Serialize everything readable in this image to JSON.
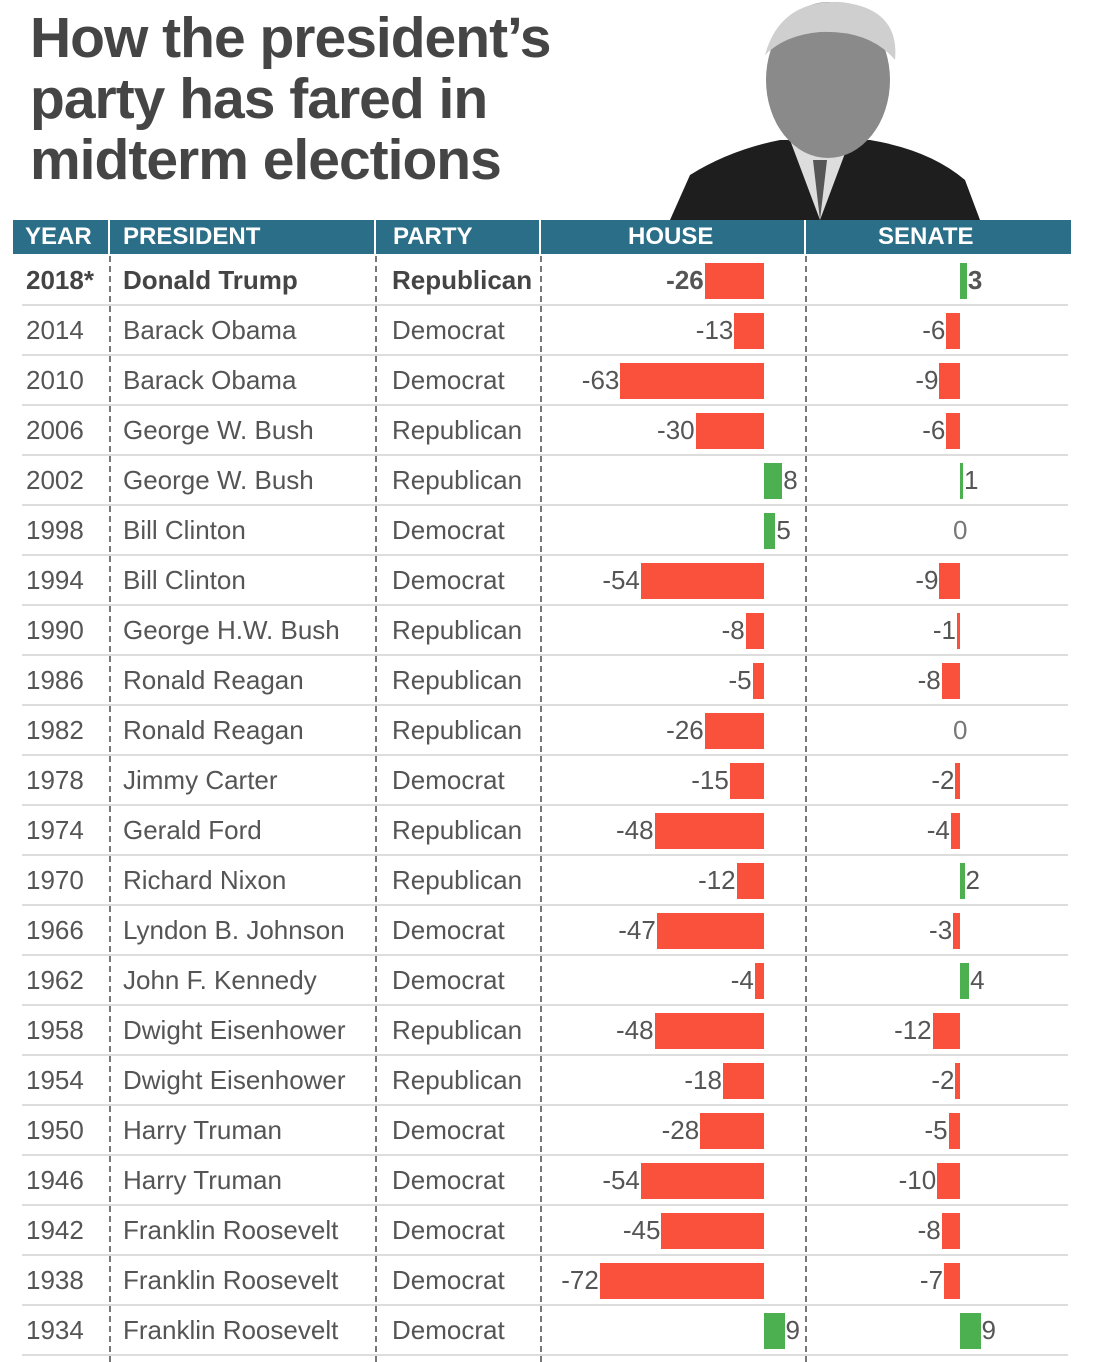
{
  "title": "How the president’s party has fared in midterm elections",
  "colors": {
    "header": "#2b6e88",
    "loss": "#f9513c",
    "gain": "#4caf50"
  },
  "chart_data": {
    "type": "table",
    "columns": [
      "YEAR",
      "PRESIDENT",
      "PARTY",
      "HOUSE",
      "SENATE"
    ],
    "rows": [
      {
        "year": "2018*",
        "president": "Donald Trump",
        "party": "Republican",
        "house": -26,
        "senate": 3
      },
      {
        "year": "2014",
        "president": "Barack Obama",
        "party": "Democrat",
        "house": -13,
        "senate": -6
      },
      {
        "year": "2010",
        "president": "Barack Obama",
        "party": "Democrat",
        "house": -63,
        "senate": -9
      },
      {
        "year": "2006",
        "president": "George W. Bush",
        "party": "Republican",
        "house": -30,
        "senate": -6
      },
      {
        "year": "2002",
        "president": "George W. Bush",
        "party": "Republican",
        "house": 8,
        "senate": 1
      },
      {
        "year": "1998",
        "president": "Bill Clinton",
        "party": "Democrat",
        "house": 5,
        "senate": 0
      },
      {
        "year": "1994",
        "president": "Bill Clinton",
        "party": "Democrat",
        "house": -54,
        "senate": -9
      },
      {
        "year": "1990",
        "president": "George H.W. Bush",
        "party": "Republican",
        "house": -8,
        "senate": -1
      },
      {
        "year": "1986",
        "president": "Ronald Reagan",
        "party": "Republican",
        "house": -5,
        "senate": -8
      },
      {
        "year": "1982",
        "president": "Ronald Reagan",
        "party": "Republican",
        "house": -26,
        "senate": 0
      },
      {
        "year": "1978",
        "president": "Jimmy Carter",
        "party": "Democrat",
        "house": -15,
        "senate": -2
      },
      {
        "year": "1974",
        "president": "Gerald Ford",
        "party": "Republican",
        "house": -48,
        "senate": -4
      },
      {
        "year": "1970",
        "president": "Richard Nixon",
        "party": "Republican",
        "house": -12,
        "senate": 2
      },
      {
        "year": "1966",
        "president": "Lyndon B. Johnson",
        "party": "Democrat",
        "house": -47,
        "senate": -3
      },
      {
        "year": "1962",
        "president": "John F. Kennedy",
        "party": "Democrat",
        "house": -4,
        "senate": 4
      },
      {
        "year": "1958",
        "president": "Dwight Eisenhower",
        "party": "Republican",
        "house": -48,
        "senate": -12
      },
      {
        "year": "1954",
        "president": "Dwight Eisenhower",
        "party": "Republican",
        "house": -18,
        "senate": -2
      },
      {
        "year": "1950",
        "president": "Harry Truman",
        "party": "Democrat",
        "house": -28,
        "senate": -5
      },
      {
        "year": "1946",
        "president": "Harry Truman",
        "party": "Democrat",
        "house": -54,
        "senate": -10
      },
      {
        "year": "1942",
        "president": "Franklin Roosevelt",
        "party": "Democrat",
        "house": -45,
        "senate": -8
      },
      {
        "year": "1938",
        "president": "Franklin Roosevelt",
        "party": "Democrat",
        "house": -72,
        "senate": -7
      },
      {
        "year": "1934",
        "president": "Franklin Roosevelt",
        "party": "Democrat",
        "house": 9,
        "senate": 9
      }
    ]
  }
}
